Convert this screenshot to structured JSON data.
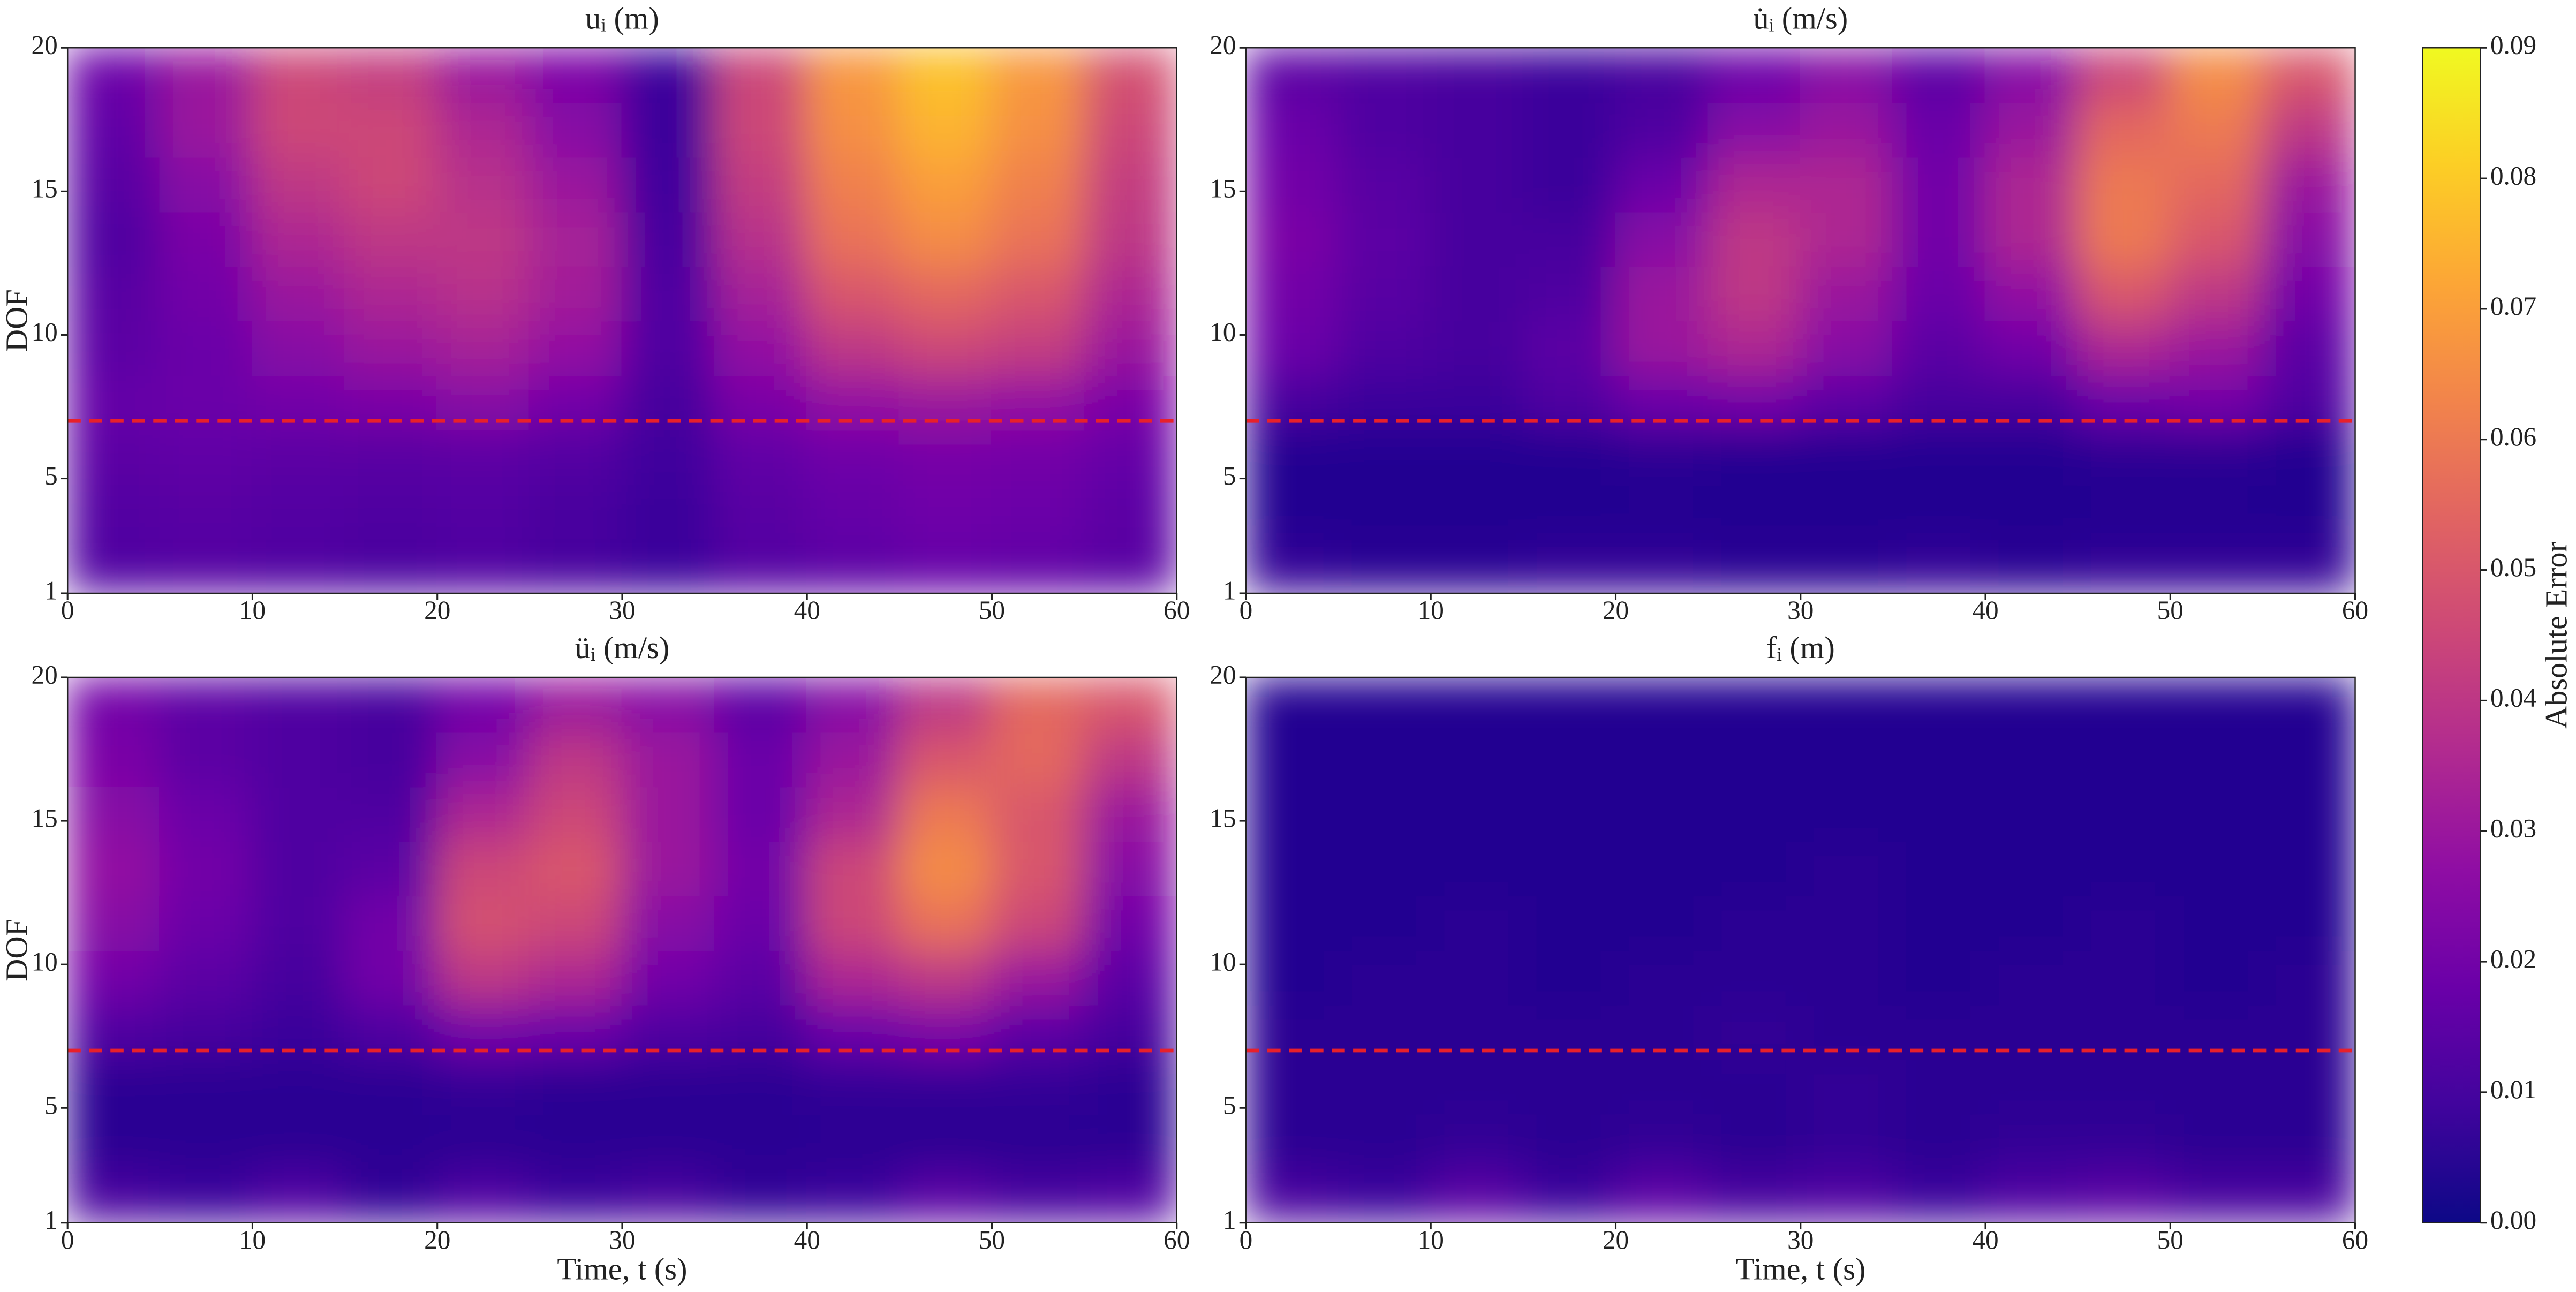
{
  "chart_data": [
    {
      "type": "heatmap",
      "title": "uᵢ (m)",
      "ylabel": "DOF",
      "xlim": [
        0,
        60
      ],
      "ylim": [
        1,
        20
      ],
      "xticks": [
        0,
        10,
        20,
        30,
        40,
        50,
        60
      ],
      "yticks": [
        1,
        5,
        10,
        15,
        20
      ],
      "hline": 7,
      "hline_color": "#e8202a",
      "z": [
        [
          0.012,
          0.013,
          0.012,
          0.011,
          0.012,
          0.01,
          0.008,
          0.013,
          0.015,
          0.017,
          0.016,
          0.014
        ],
        [
          0.013,
          0.014,
          0.013,
          0.012,
          0.013,
          0.011,
          0.008,
          0.014,
          0.017,
          0.019,
          0.018,
          0.015
        ],
        [
          0.015,
          0.016,
          0.015,
          0.014,
          0.015,
          0.013,
          0.009,
          0.016,
          0.019,
          0.021,
          0.02,
          0.017
        ],
        [
          0.017,
          0.018,
          0.02,
          0.022,
          0.025,
          0.02,
          0.01,
          0.022,
          0.028,
          0.03,
          0.028,
          0.022
        ],
        [
          0.015,
          0.018,
          0.025,
          0.03,
          0.033,
          0.028,
          0.012,
          0.028,
          0.04,
          0.045,
          0.042,
          0.03
        ],
        [
          0.014,
          0.02,
          0.03,
          0.035,
          0.038,
          0.032,
          0.012,
          0.033,
          0.05,
          0.055,
          0.05,
          0.035
        ],
        [
          0.012,
          0.022,
          0.035,
          0.04,
          0.04,
          0.033,
          0.01,
          0.038,
          0.058,
          0.065,
          0.058,
          0.04
        ],
        [
          0.014,
          0.025,
          0.04,
          0.045,
          0.038,
          0.03,
          0.009,
          0.042,
          0.062,
          0.07,
          0.062,
          0.042
        ],
        [
          0.016,
          0.03,
          0.045,
          0.045,
          0.035,
          0.025,
          0.008,
          0.045,
          0.066,
          0.075,
          0.066,
          0.045
        ],
        [
          0.018,
          0.03,
          0.045,
          0.042,
          0.03,
          0.022,
          0.008,
          0.045,
          0.068,
          0.078,
          0.068,
          0.048
        ]
      ]
    },
    {
      "type": "heatmap",
      "title": "u̇ᵢ (m/s)",
      "xlim": [
        0,
        60
      ],
      "ylim": [
        1,
        20
      ],
      "xticks": [
        0,
        10,
        20,
        30,
        40,
        50,
        60
      ],
      "yticks": [
        1,
        5,
        10,
        15,
        20
      ],
      "hline": 7,
      "hline_color": "#e8202a",
      "z": [
        [
          0.006,
          0.005,
          0.005,
          0.006,
          0.006,
          0.005,
          0.005,
          0.006,
          0.005,
          0.006,
          0.006,
          0.006
        ],
        [
          0.004,
          0.004,
          0.004,
          0.004,
          0.004,
          0.004,
          0.004,
          0.004,
          0.004,
          0.004,
          0.004,
          0.004
        ],
        [
          0.004,
          0.004,
          0.004,
          0.004,
          0.005,
          0.004,
          0.004,
          0.004,
          0.004,
          0.005,
          0.005,
          0.004
        ],
        [
          0.01,
          0.008,
          0.008,
          0.012,
          0.018,
          0.02,
          0.015,
          0.01,
          0.01,
          0.018,
          0.02,
          0.012
        ],
        [
          0.018,
          0.012,
          0.01,
          0.015,
          0.03,
          0.035,
          0.025,
          0.015,
          0.02,
          0.035,
          0.03,
          0.015
        ],
        [
          0.02,
          0.014,
          0.01,
          0.012,
          0.03,
          0.04,
          0.03,
          0.018,
          0.028,
          0.05,
          0.04,
          0.02
        ],
        [
          0.022,
          0.015,
          0.01,
          0.01,
          0.025,
          0.04,
          0.035,
          0.02,
          0.035,
          0.06,
          0.05,
          0.025
        ],
        [
          0.02,
          0.014,
          0.01,
          0.008,
          0.018,
          0.035,
          0.035,
          0.02,
          0.035,
          0.06,
          0.055,
          0.03
        ],
        [
          0.018,
          0.012,
          0.01,
          0.008,
          0.012,
          0.025,
          0.03,
          0.018,
          0.03,
          0.055,
          0.06,
          0.04
        ],
        [
          0.015,
          0.012,
          0.01,
          0.008,
          0.01,
          0.018,
          0.025,
          0.015,
          0.025,
          0.045,
          0.065,
          0.05
        ]
      ]
    },
    {
      "type": "heatmap",
      "title": "üᵢ (m/s)",
      "xlabel": "Time, t (s)",
      "ylabel": "DOF",
      "xlim": [
        0,
        60
      ],
      "ylim": [
        1,
        20
      ],
      "xticks": [
        0,
        10,
        20,
        30,
        40,
        50,
        60
      ],
      "yticks": [
        1,
        5,
        10,
        15,
        20
      ],
      "hline": 7,
      "hline_color": "#e8202a",
      "z": [
        [
          0.01,
          0.008,
          0.012,
          0.006,
          0.012,
          0.008,
          0.01,
          0.006,
          0.008,
          0.014,
          0.01,
          0.012
        ],
        [
          0.005,
          0.005,
          0.005,
          0.005,
          0.005,
          0.005,
          0.005,
          0.005,
          0.005,
          0.005,
          0.005,
          0.005
        ],
        [
          0.005,
          0.005,
          0.005,
          0.005,
          0.006,
          0.005,
          0.005,
          0.005,
          0.006,
          0.006,
          0.006,
          0.005
        ],
        [
          0.012,
          0.01,
          0.008,
          0.012,
          0.02,
          0.018,
          0.012,
          0.01,
          0.018,
          0.022,
          0.015,
          0.01
        ],
        [
          0.02,
          0.015,
          0.01,
          0.02,
          0.04,
          0.035,
          0.02,
          0.015,
          0.035,
          0.04,
          0.03,
          0.015
        ],
        [
          0.025,
          0.018,
          0.012,
          0.02,
          0.048,
          0.045,
          0.025,
          0.018,
          0.045,
          0.058,
          0.045,
          0.02
        ],
        [
          0.028,
          0.02,
          0.012,
          0.015,
          0.045,
          0.05,
          0.03,
          0.02,
          0.045,
          0.065,
          0.05,
          0.025
        ],
        [
          0.025,
          0.018,
          0.012,
          0.012,
          0.035,
          0.045,
          0.03,
          0.018,
          0.035,
          0.06,
          0.05,
          0.03
        ],
        [
          0.022,
          0.015,
          0.012,
          0.01,
          0.025,
          0.04,
          0.03,
          0.018,
          0.03,
          0.05,
          0.055,
          0.04
        ],
        [
          0.02,
          0.015,
          0.012,
          0.01,
          0.02,
          0.03,
          0.025,
          0.015,
          0.025,
          0.04,
          0.055,
          0.05
        ]
      ]
    },
    {
      "type": "heatmap",
      "title": "fᵢ (m)",
      "xlabel": "Time, t (s)",
      "xlim": [
        0,
        60
      ],
      "ylim": [
        1,
        20
      ],
      "xticks": [
        0,
        10,
        20,
        30,
        40,
        50,
        60
      ],
      "yticks": [
        1,
        5,
        10,
        15,
        20
      ],
      "hline": 7,
      "hline_color": "#e8202a",
      "z": [
        [
          0.01,
          0.008,
          0.014,
          0.008,
          0.015,
          0.01,
          0.012,
          0.008,
          0.012,
          0.014,
          0.01,
          0.01
        ],
        [
          0.005,
          0.005,
          0.006,
          0.005,
          0.006,
          0.005,
          0.006,
          0.005,
          0.006,
          0.006,
          0.005,
          0.005
        ],
        [
          0.005,
          0.005,
          0.005,
          0.005,
          0.005,
          0.005,
          0.006,
          0.005,
          0.005,
          0.005,
          0.005,
          0.005
        ],
        [
          0.005,
          0.005,
          0.005,
          0.005,
          0.005,
          0.006,
          0.005,
          0.005,
          0.005,
          0.005,
          0.005,
          0.005
        ],
        [
          0.004,
          0.005,
          0.005,
          0.004,
          0.005,
          0.005,
          0.005,
          0.004,
          0.005,
          0.005,
          0.004,
          0.005
        ],
        [
          0.004,
          0.004,
          0.005,
          0.004,
          0.004,
          0.005,
          0.005,
          0.004,
          0.004,
          0.005,
          0.004,
          0.004
        ],
        [
          0.004,
          0.004,
          0.004,
          0.004,
          0.004,
          0.004,
          0.005,
          0.004,
          0.004,
          0.004,
          0.004,
          0.004
        ],
        [
          0.004,
          0.004,
          0.004,
          0.004,
          0.004,
          0.004,
          0.004,
          0.004,
          0.004,
          0.004,
          0.004,
          0.004
        ],
        [
          0.004,
          0.004,
          0.004,
          0.004,
          0.004,
          0.004,
          0.004,
          0.004,
          0.004,
          0.004,
          0.004,
          0.004
        ],
        [
          0.004,
          0.004,
          0.004,
          0.004,
          0.004,
          0.004,
          0.004,
          0.004,
          0.004,
          0.004,
          0.004,
          0.004
        ]
      ]
    },
    {
      "type": "colorbar",
      "label": "Absolute Error",
      "colormap": "plasma",
      "ylim": [
        0,
        0.09
      ],
      "yticks": [
        {
          "value": 0,
          "label": "0.00"
        },
        0.01,
        0.02,
        0.03,
        0.04,
        0.05,
        0.06,
        0.07,
        0.08,
        0.09
      ]
    }
  ]
}
